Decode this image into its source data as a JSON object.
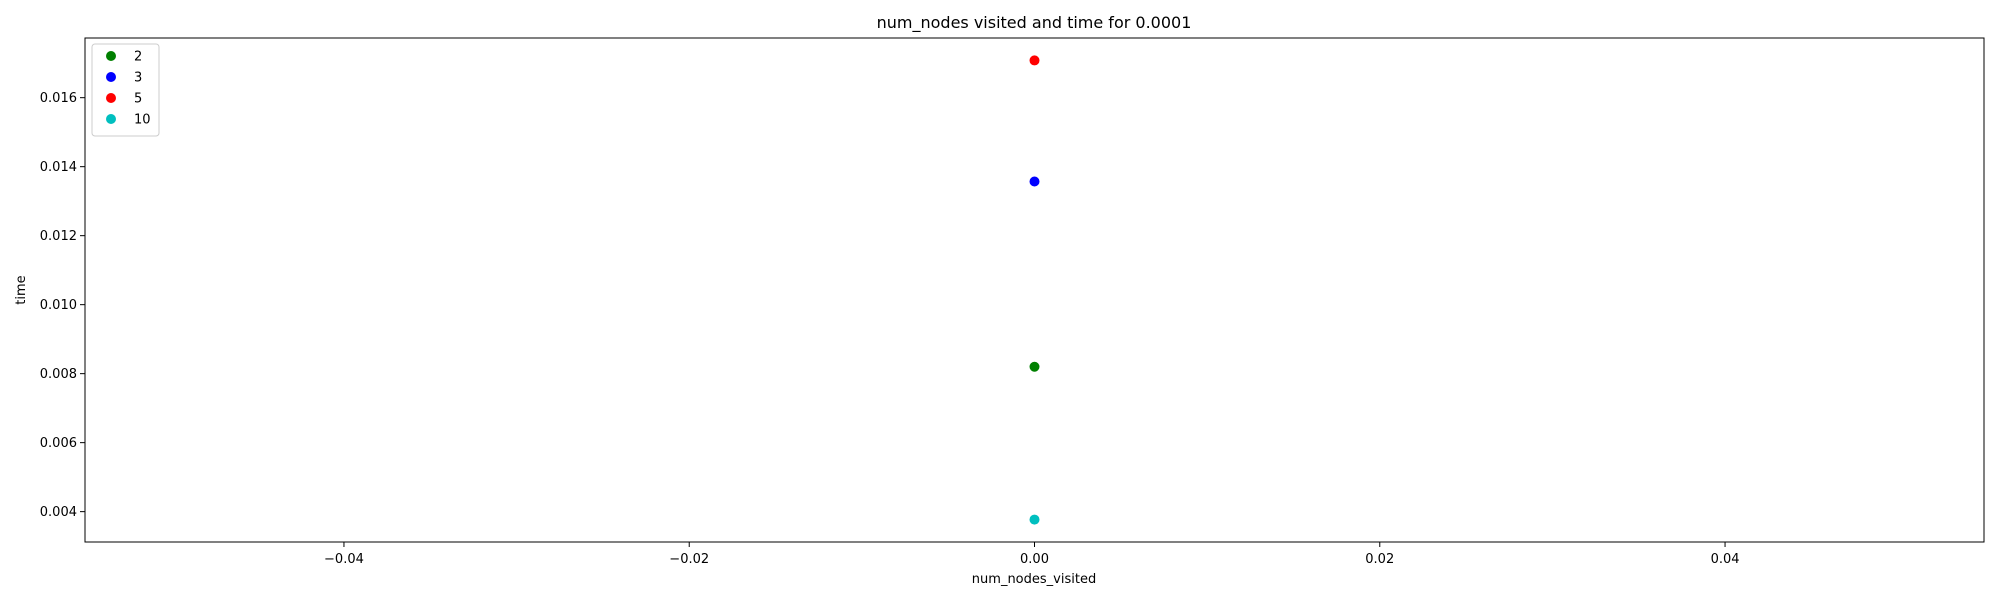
{
  "chart_data": {
    "type": "scatter",
    "title": "num_nodes visited and time for 0.0001",
    "xlabel": "num_nodes_visited",
    "ylabel": "time",
    "xlim": [
      -0.055,
      0.055
    ],
    "ylim": [
      0.00312,
      0.01773
    ],
    "xticks": [
      -0.04,
      -0.02,
      0.0,
      0.02,
      0.04
    ],
    "xtick_labels": [
      "−0.04",
      "−0.02",
      "0.00",
      "0.02",
      "0.04"
    ],
    "yticks": [
      0.004,
      0.006,
      0.008,
      0.01,
      0.012,
      0.014,
      0.016
    ],
    "ytick_labels": [
      "0.004",
      "0.006",
      "0.008",
      "0.010",
      "0.012",
      "0.014",
      "0.016"
    ],
    "grid": false,
    "legend_position": "top-left",
    "series": [
      {
        "name": "2",
        "color": "#008000",
        "points": [
          {
            "x": 0,
            "y": 0.0082
          }
        ]
      },
      {
        "name": "3",
        "color": "#0000ff",
        "points": [
          {
            "x": 0,
            "y": 0.01357
          }
        ]
      },
      {
        "name": "5",
        "color": "#ff0000",
        "points": [
          {
            "x": 0,
            "y": 0.01708
          }
        ]
      },
      {
        "name": "10",
        "color": "#00bfbf",
        "points": [
          {
            "x": 0,
            "y": 0.00377
          }
        ]
      }
    ]
  }
}
